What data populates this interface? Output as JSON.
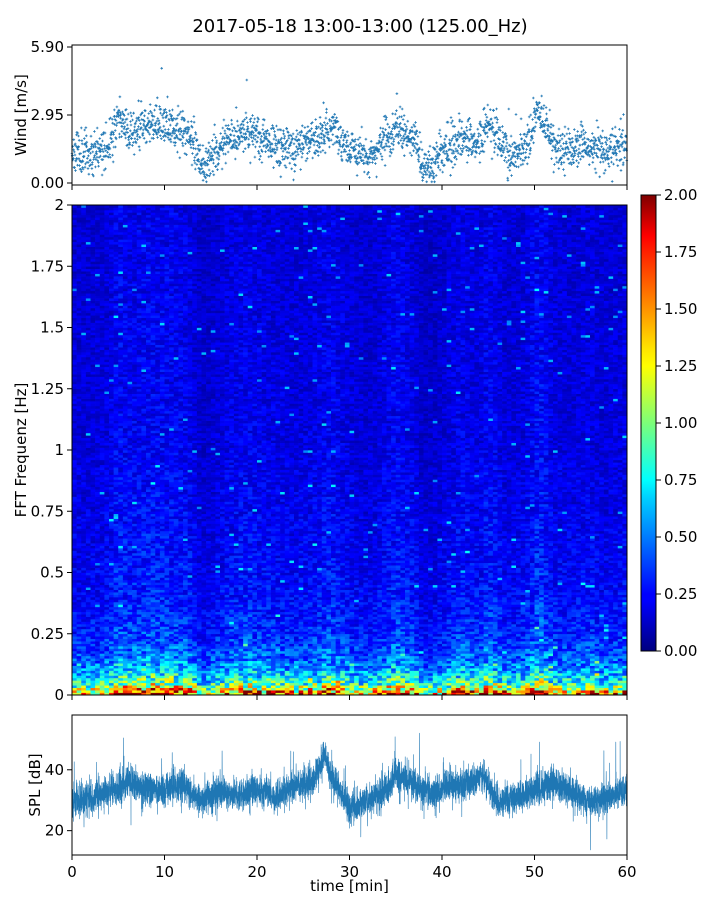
{
  "title": "2017-05-18 13:00-13:00 (125.00_Hz)",
  "colors": {
    "series": "#1f77b4"
  },
  "chart_data": [
    {
      "name": "wind",
      "type": "scatter",
      "ylabel": "Wind [m/s]",
      "ylim": [
        0,
        5.9
      ],
      "yticks": [
        "0.00",
        "2.95",
        "5.90"
      ],
      "xlim": [
        0,
        60
      ],
      "x_tick_labels_shown": false,
      "marker": "+",
      "samples_per_minute": 40,
      "envelope": {
        "x": [
          0,
          2,
          4,
          5,
          6,
          8,
          10,
          12,
          13,
          14,
          15,
          17,
          19,
          21,
          24,
          26,
          28,
          30,
          32,
          34,
          35,
          37,
          38,
          40,
          42,
          44,
          45,
          47,
          49,
          50.5,
          52,
          54,
          56,
          58,
          60
        ],
        "y": [
          1.4,
          1.3,
          1.6,
          2.9,
          2.2,
          2.6,
          2.5,
          2.3,
          1.9,
          0.8,
          1.1,
          1.9,
          2.2,
          1.8,
          1.5,
          1.7,
          2.4,
          1.5,
          1.1,
          1.9,
          2.5,
          1.8,
          0.6,
          1.2,
          2.1,
          1.6,
          2.6,
          1.3,
          1.6,
          3.1,
          1.7,
          1.4,
          1.7,
          1.3,
          1.7
        ]
      }
    },
    {
      "name": "spectrogram",
      "type": "heatmap",
      "ylabel": "FFT Frequenz [Hz]",
      "ylim": [
        0,
        2
      ],
      "yticks": [
        "0",
        "0.25",
        "0.5",
        "0.75",
        "1",
        "1.25",
        "1.5",
        "1.75",
        "2"
      ],
      "xlim": [
        0,
        60
      ],
      "x_tick_labels_shown": false,
      "colormap": "jet",
      "colorbar": {
        "range": [
          0,
          2
        ],
        "ticks": [
          "0.00",
          "0.25",
          "0.50",
          "0.75",
          "1.00",
          "1.25",
          "1.50",
          "1.75",
          "2.00"
        ]
      },
      "frequency_bins": 200,
      "time_bins": 120,
      "mean_level_by_frequency": {
        "freq": [
          0,
          0.02,
          0.05,
          0.1,
          0.15,
          0.25,
          0.4,
          0.6,
          1.0,
          1.5,
          2.0
        ],
        "level": [
          1.8,
          1.3,
          0.85,
          0.6,
          0.45,
          0.33,
          0.27,
          0.24,
          0.2,
          0.19,
          0.18
        ]
      }
    },
    {
      "name": "spl",
      "type": "line",
      "ylabel": "SPL [dB]",
      "xlabel": "time [min]",
      "ylim": [
        12,
        58
      ],
      "yticks": [
        20,
        40
      ],
      "xlim": [
        0,
        60
      ],
      "xticks": [
        0,
        10,
        20,
        30,
        40,
        50,
        60
      ],
      "samples_per_minute": 120,
      "envelope": {
        "x": [
          0,
          2,
          4,
          6,
          8,
          10,
          12,
          14,
          16,
          18,
          20,
          22,
          24,
          26,
          27.3,
          28,
          30,
          32,
          34,
          35,
          37,
          39,
          41,
          43,
          44.5,
          46,
          48,
          50,
          52,
          54,
          56,
          58,
          60
        ],
        "y": [
          30,
          31,
          33,
          36,
          34,
          33,
          35,
          30,
          33,
          31,
          34,
          31,
          35,
          36,
          45,
          38,
          27,
          30,
          33,
          39,
          35,
          32,
          35,
          36,
          38,
          29,
          31,
          33,
          36,
          33,
          29,
          31,
          34
        ]
      }
    }
  ]
}
